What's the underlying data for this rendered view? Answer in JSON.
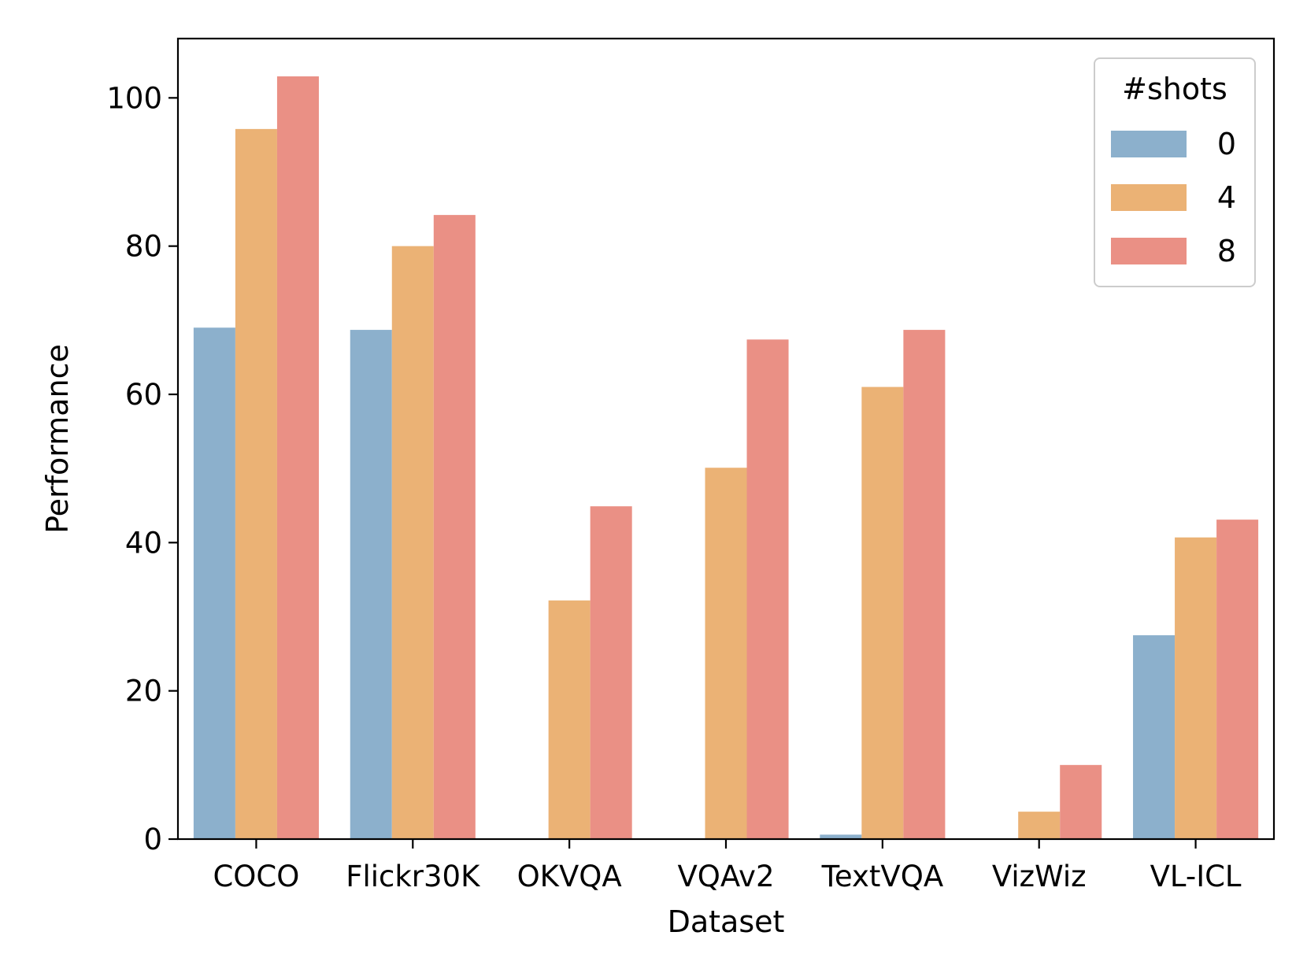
{
  "chart_data": {
    "type": "bar",
    "categories": [
      "COCO",
      "Flickr30K",
      "OKVQA",
      "VQAv2",
      "TextVQA",
      "VizWiz",
      "VL-ICL"
    ],
    "series": [
      {
        "name": "0",
        "color": "#8CB0CC",
        "values": [
          69.0,
          68.7,
          0,
          0,
          0.6,
          0,
          27.5
        ]
      },
      {
        "name": "4",
        "color": "#EBB275",
        "values": [
          95.8,
          80.0,
          32.2,
          50.1,
          61.0,
          3.7,
          40.7
        ]
      },
      {
        "name": "8",
        "color": "#EA9085",
        "values": [
          102.9,
          84.2,
          44.9,
          67.4,
          68.7,
          10.0,
          43.1
        ]
      }
    ],
    "xlabel": "Dataset",
    "ylabel": "Performance",
    "ylim": [
      0,
      108
    ],
    "yticks": [
      0,
      20,
      40,
      60,
      80,
      100
    ],
    "legend": {
      "title": "#shots",
      "position": "top-right"
    },
    "grid": false
  }
}
